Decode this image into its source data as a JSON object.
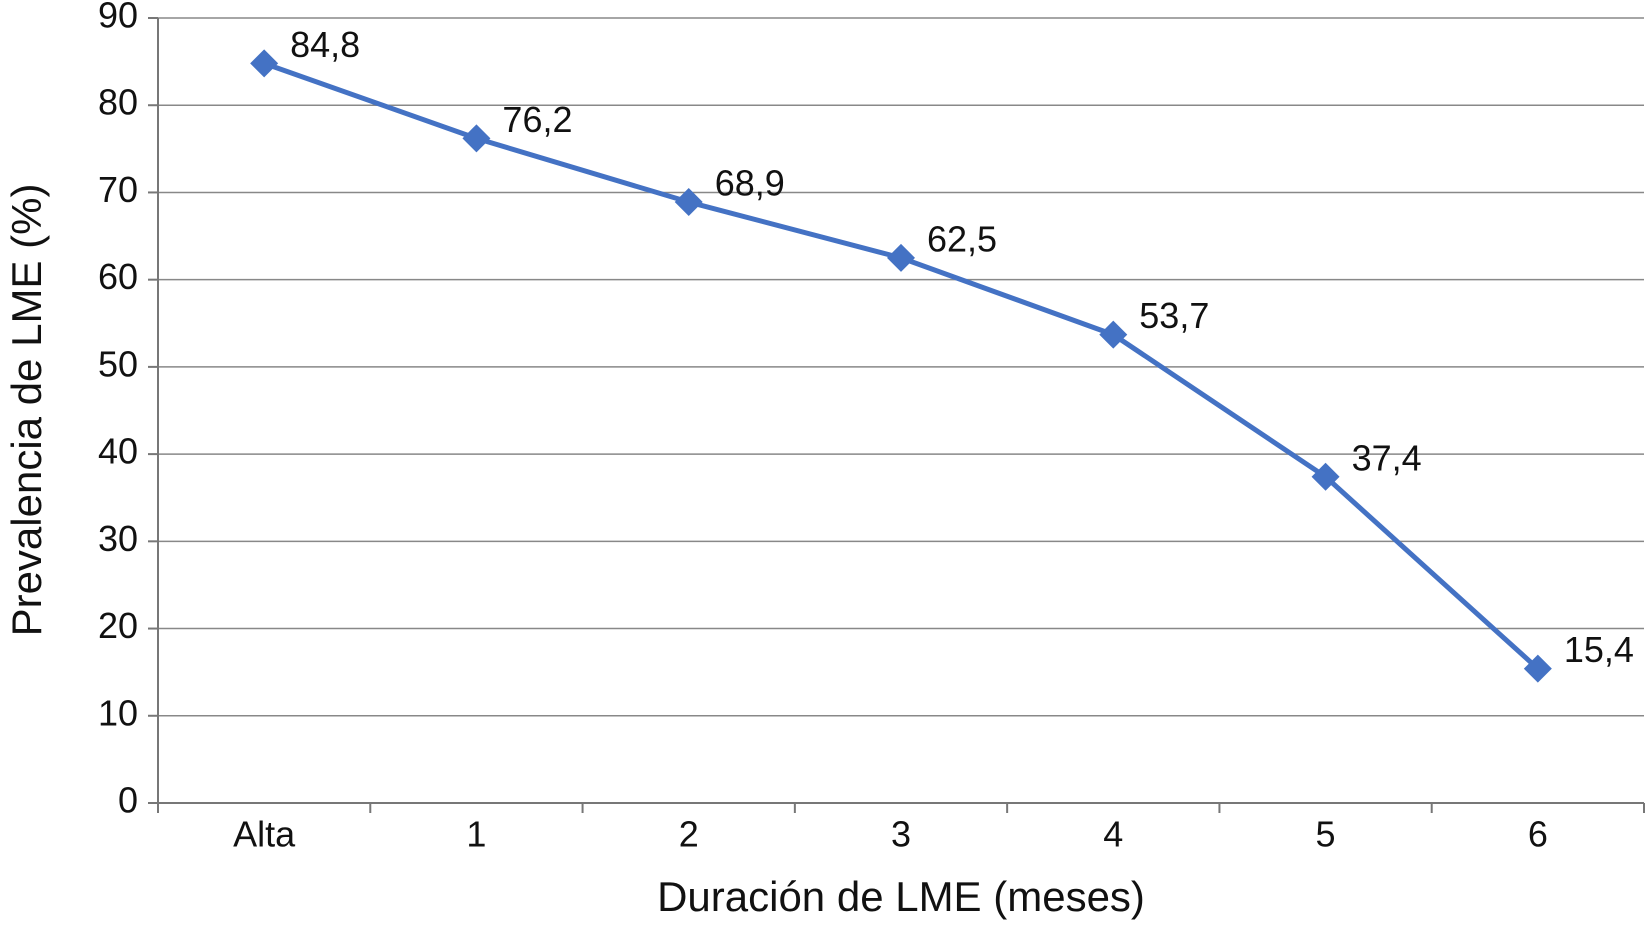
{
  "chart_data": {
    "type": "line",
    "x_label": "Duración de LME (meses)",
    "y_label": "Prevalencia de LME (%)",
    "categories": [
      "Alta",
      "1",
      "2",
      "3",
      "4",
      "5",
      "6"
    ],
    "series": [
      {
        "name": "Prevalencia de LME",
        "color": "#4472c4",
        "values": [
          84.8,
          76.2,
          68.9,
          62.5,
          53.7,
          37.4,
          15.4
        ],
        "value_labels": [
          "84,8",
          "76,2",
          "68,9",
          "62,5",
          "53,7",
          "37,4",
          "15,4"
        ]
      }
    ],
    "ylim": [
      0,
      90
    ],
    "yticks": [
      0,
      10,
      20,
      30,
      40,
      50,
      60,
      70,
      80,
      90
    ],
    "grid": true
  }
}
